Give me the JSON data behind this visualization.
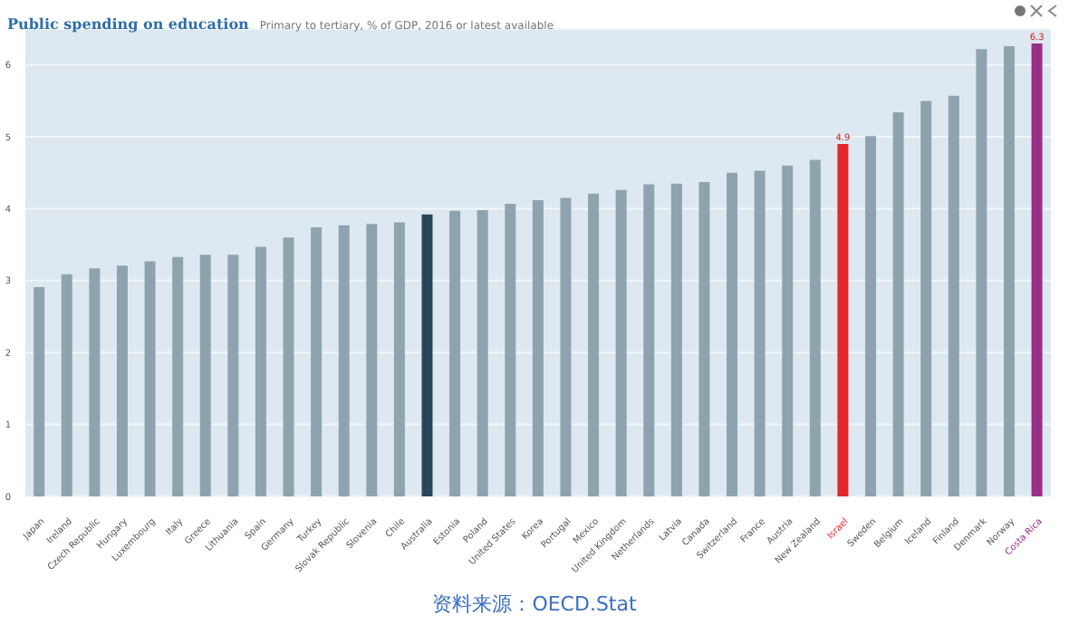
{
  "chart_data": {
    "type": "bar",
    "title": "Public spending on education",
    "subtitle": "Primary to tertiary, % of GDP, 2016 or latest available",
    "categories": [
      "Japan",
      "Ireland",
      "Czech Republic",
      "Hungary",
      "Luxembourg",
      "Italy",
      "Greece",
      "Lithuania",
      "Spain",
      "Germany",
      "Turkey",
      "Slovak Republic",
      "Slovenia",
      "Chile",
      "Australia",
      "Estonia",
      "Poland",
      "United States",
      "Korea",
      "Portugal",
      "Mexico",
      "United Kingdom",
      "Netherlands",
      "Latvia",
      "Canada",
      "Switzerland",
      "France",
      "Austria",
      "New Zealand",
      "Israel",
      "Sweden",
      "Belgium",
      "Iceland",
      "Finland",
      "Denmark",
      "Norway",
      "Costa Rica"
    ],
    "values": [
      2.91,
      3.09,
      3.17,
      3.21,
      3.27,
      3.33,
      3.36,
      3.36,
      3.47,
      3.6,
      3.74,
      3.77,
      3.79,
      3.81,
      3.92,
      3.97,
      3.98,
      4.07,
      4.12,
      4.15,
      4.21,
      4.26,
      4.34,
      4.35,
      4.37,
      4.5,
      4.53,
      4.6,
      4.68,
      4.9,
      5.01,
      5.34,
      5.5,
      5.57,
      6.22,
      6.26,
      6.3
    ],
    "value_labels": [
      null,
      null,
      null,
      null,
      null,
      null,
      null,
      null,
      null,
      null,
      null,
      null,
      null,
      null,
      null,
      null,
      null,
      null,
      null,
      null,
      null,
      null,
      null,
      null,
      null,
      null,
      null,
      null,
      null,
      "4.9",
      null,
      null,
      null,
      null,
      null,
      null,
      "6.3"
    ],
    "colors": [
      "#8fa3af",
      "#8fa3af",
      "#8fa3af",
      "#8fa3af",
      "#8fa3af",
      "#8fa3af",
      "#8fa3af",
      "#8fa3af",
      "#8fa3af",
      "#8fa3af",
      "#8fa3af",
      "#8fa3af",
      "#8fa3af",
      "#8fa3af",
      "#2a4659",
      "#8fa3af",
      "#8fa3af",
      "#8fa3af",
      "#8fa3af",
      "#8fa3af",
      "#8fa3af",
      "#8fa3af",
      "#8fa3af",
      "#8fa3af",
      "#8fa3af",
      "#8fa3af",
      "#8fa3af",
      "#8fa3af",
      "#8fa3af",
      "#e3262b",
      "#8fa3af",
      "#8fa3af",
      "#8fa3af",
      "#8fa3af",
      "#8fa3af",
      "#8fa3af",
      "#9b2f86"
    ],
    "ylim": [
      0,
      6.5
    ],
    "yticks": [
      0,
      1,
      2,
      3,
      4,
      5,
      6
    ],
    "grid": "y",
    "annotations": [
      "资料来源：OECD.Stat"
    ]
  }
}
